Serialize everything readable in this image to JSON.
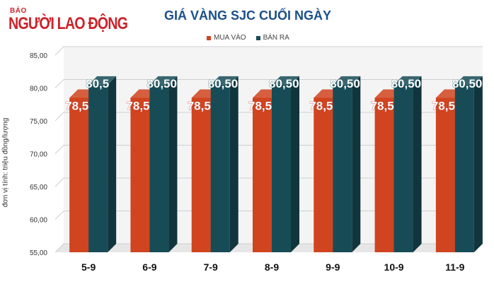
{
  "logo": {
    "small": "BÁO",
    "main": "NGƯỜI LAO ĐỘNG"
  },
  "chart_data": {
    "type": "bar",
    "title": "GIÁ VÀNG SJC CUỐI NGÀY",
    "ylabel": "đơn vị tính: triệu đồng/lượng",
    "xlabel": "",
    "categories": [
      "5-9",
      "6-9",
      "7-9",
      "8-9",
      "9-9",
      "10-9",
      "11-9"
    ],
    "ylim": [
      55,
      85
    ],
    "yticks": [
      "55,00",
      "60,00",
      "65,00",
      "70,00",
      "75,00",
      "80,00",
      "85,00"
    ],
    "legend_position": "top",
    "grid": true,
    "series": [
      {
        "name": "MUA VÀO",
        "color": "#d0441f",
        "values": [
          78.5,
          78.5,
          78.5,
          78.5,
          78.5,
          78.5,
          78.5
        ],
        "labels": [
          "78,5",
          "78,50",
          "78,50",
          "78,50",
          "78,50",
          "78,50",
          "78,50"
        ]
      },
      {
        "name": "BÁN RA",
        "color": "#174c57",
        "values": [
          80.5,
          80.5,
          80.5,
          80.5,
          80.5,
          80.5,
          80.5
        ],
        "labels": [
          "80,5",
          "80,50",
          "80,50",
          "80,50",
          "80,50",
          "80,50",
          "80,50"
        ]
      }
    ]
  }
}
